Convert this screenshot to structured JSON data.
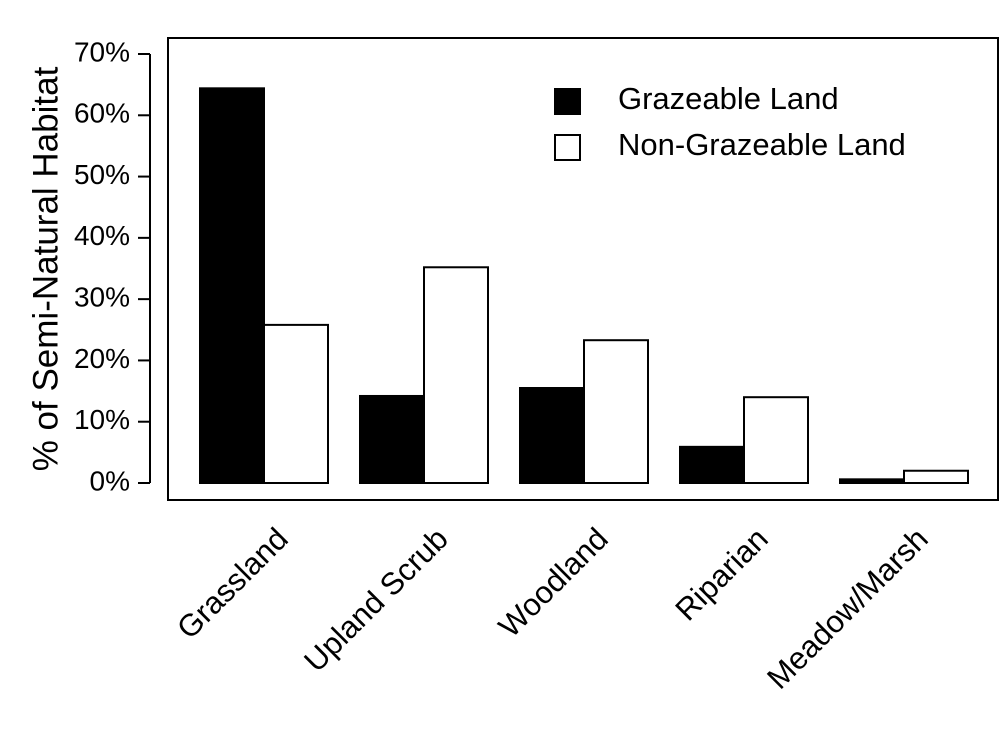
{
  "chart_data": {
    "type": "bar",
    "y_label": "% of Semi-Natural Habitat",
    "categories": [
      "Grassland",
      "Upland Scrub",
      "Woodland",
      "Riparian",
      "Meadow/Marsh"
    ],
    "series": [
      {
        "name": "Grazeable Land",
        "color": "#000000",
        "values": [
          64.4,
          14.2,
          15.5,
          5.9,
          0.6
        ]
      },
      {
        "name": "Non-Grazeable Land",
        "color": "#ffffff",
        "values": [
          25.8,
          35.2,
          23.3,
          14.0,
          2.0
        ]
      }
    ],
    "ylim": [
      0,
      70
    ],
    "yticks": [
      {
        "value": 0,
        "label": "0%"
      },
      {
        "value": 10,
        "label": "10%"
      },
      {
        "value": 20,
        "label": "20%"
      },
      {
        "value": 30,
        "label": "30%"
      },
      {
        "value": 40,
        "label": "40%"
      },
      {
        "value": 50,
        "label": "50%"
      },
      {
        "value": 60,
        "label": "60%"
      },
      {
        "value": 70,
        "label": "70%"
      }
    ],
    "legend": "topright",
    "grid": false
  }
}
